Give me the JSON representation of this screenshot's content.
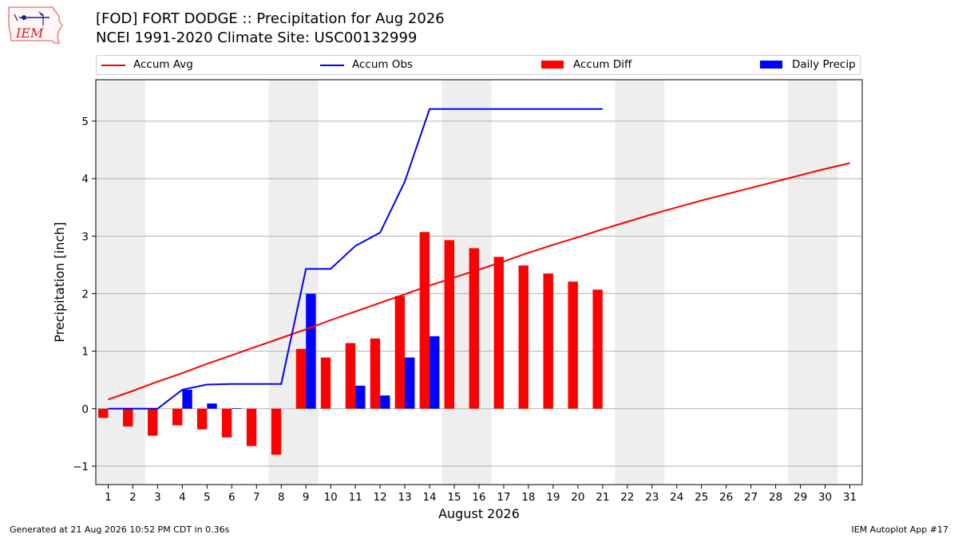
{
  "logo": {
    "text": "IEM",
    "icon": "iowa-state-outline-icon"
  },
  "title": {
    "line1": "[FOD] FORT DODGE :: Precipitation for Aug 2026",
    "line2": "NCEI 1991-2020 Climate Site: USC00132999"
  },
  "legend": [
    {
      "label": "Accum Avg",
      "kind": "line",
      "color": "#ff0000"
    },
    {
      "label": "Accum Obs",
      "kind": "line",
      "color": "#0000ff"
    },
    {
      "label": "Accum Diff",
      "kind": "patch",
      "color": "#ff0000"
    },
    {
      "label": "Daily Precip",
      "kind": "patch",
      "color": "#0000ff"
    }
  ],
  "footer": {
    "left": "Generated at 21 Aug 2026 10:52 PM CDT in 0.36s",
    "right": "IEM Autoplot App #17"
  },
  "chart_data": {
    "type": "bar",
    "xlabel": "August 2026",
    "ylabel": "Precipitation [inch]",
    "x": [
      1,
      2,
      3,
      4,
      5,
      6,
      7,
      8,
      9,
      10,
      11,
      12,
      13,
      14,
      15,
      16,
      17,
      18,
      19,
      20,
      21,
      22,
      23,
      24,
      25,
      26,
      27,
      28,
      29,
      30,
      31
    ],
    "xlim": [
      0.5,
      31.5
    ],
    "ylim": [
      -1.32,
      5.72
    ],
    "yticks": [
      -1,
      0,
      1,
      2,
      3,
      4,
      5
    ],
    "ytick_labels": [
      "−1",
      "0",
      "1",
      "2",
      "3",
      "4",
      "5"
    ],
    "grid": "horizontal",
    "weekend_shading": [
      [
        0.5,
        2.5
      ],
      [
        7.5,
        9.5
      ],
      [
        14.5,
        16.5
      ],
      [
        21.5,
        23.5
      ],
      [
        28.5,
        30.5
      ]
    ],
    "series": [
      {
        "name": "Accum Avg",
        "kind": "line",
        "color": "#ff0000",
        "x": [
          1,
          2,
          3,
          4,
          5,
          6,
          7,
          8,
          9,
          10,
          11,
          12,
          13,
          14,
          15,
          16,
          17,
          18,
          19,
          20,
          21,
          22,
          23,
          24,
          25,
          26,
          27,
          28,
          29,
          30,
          31
        ],
        "values": [
          0.16,
          0.31,
          0.47,
          0.62,
          0.78,
          0.93,
          1.08,
          1.23,
          1.38,
          1.54,
          1.69,
          1.84,
          1.99,
          2.14,
          2.28,
          2.42,
          2.56,
          2.71,
          2.85,
          2.98,
          3.12,
          3.25,
          3.38,
          3.5,
          3.62,
          3.73,
          3.84,
          3.95,
          4.06,
          4.17,
          4.27
        ]
      },
      {
        "name": "Accum Obs",
        "kind": "line",
        "color": "#0000ff",
        "x": [
          1,
          2,
          3,
          4,
          5,
          6,
          7,
          8,
          9,
          10,
          11,
          12,
          13,
          14,
          15,
          16,
          17,
          18,
          19,
          20,
          21
        ],
        "values": [
          0.0,
          0.0,
          0.0,
          0.33,
          0.42,
          0.43,
          0.43,
          0.43,
          2.43,
          2.43,
          2.83,
          3.06,
          3.95,
          5.21,
          5.21,
          5.21,
          5.21,
          5.21,
          5.21,
          5.21,
          5.21
        ]
      },
      {
        "name": "Accum Diff",
        "kind": "bar",
        "color": "#ff0000",
        "x": [
          1,
          2,
          3,
          4,
          5,
          6,
          7,
          8,
          9,
          10,
          11,
          12,
          13,
          14,
          15,
          16,
          17,
          18,
          19,
          20,
          21
        ],
        "values": [
          -0.16,
          -0.31,
          -0.47,
          -0.29,
          -0.36,
          -0.5,
          -0.65,
          -0.8,
          1.04,
          0.89,
          1.14,
          1.22,
          1.96,
          3.07,
          2.93,
          2.79,
          2.64,
          2.49,
          2.35,
          2.21,
          2.07
        ]
      },
      {
        "name": "Daily Precip",
        "kind": "bar",
        "color": "#0000ff",
        "x": [
          1,
          2,
          3,
          4,
          5,
          6,
          7,
          8,
          9,
          10,
          11,
          12,
          13,
          14,
          15,
          16,
          17,
          18,
          19,
          20,
          21
        ],
        "values": [
          0,
          0,
          0,
          0.33,
          0.09,
          0.01,
          0,
          0,
          2.0,
          0,
          0.4,
          0.23,
          0.89,
          1.26,
          0,
          0,
          0,
          0,
          0,
          0,
          0
        ]
      }
    ]
  }
}
